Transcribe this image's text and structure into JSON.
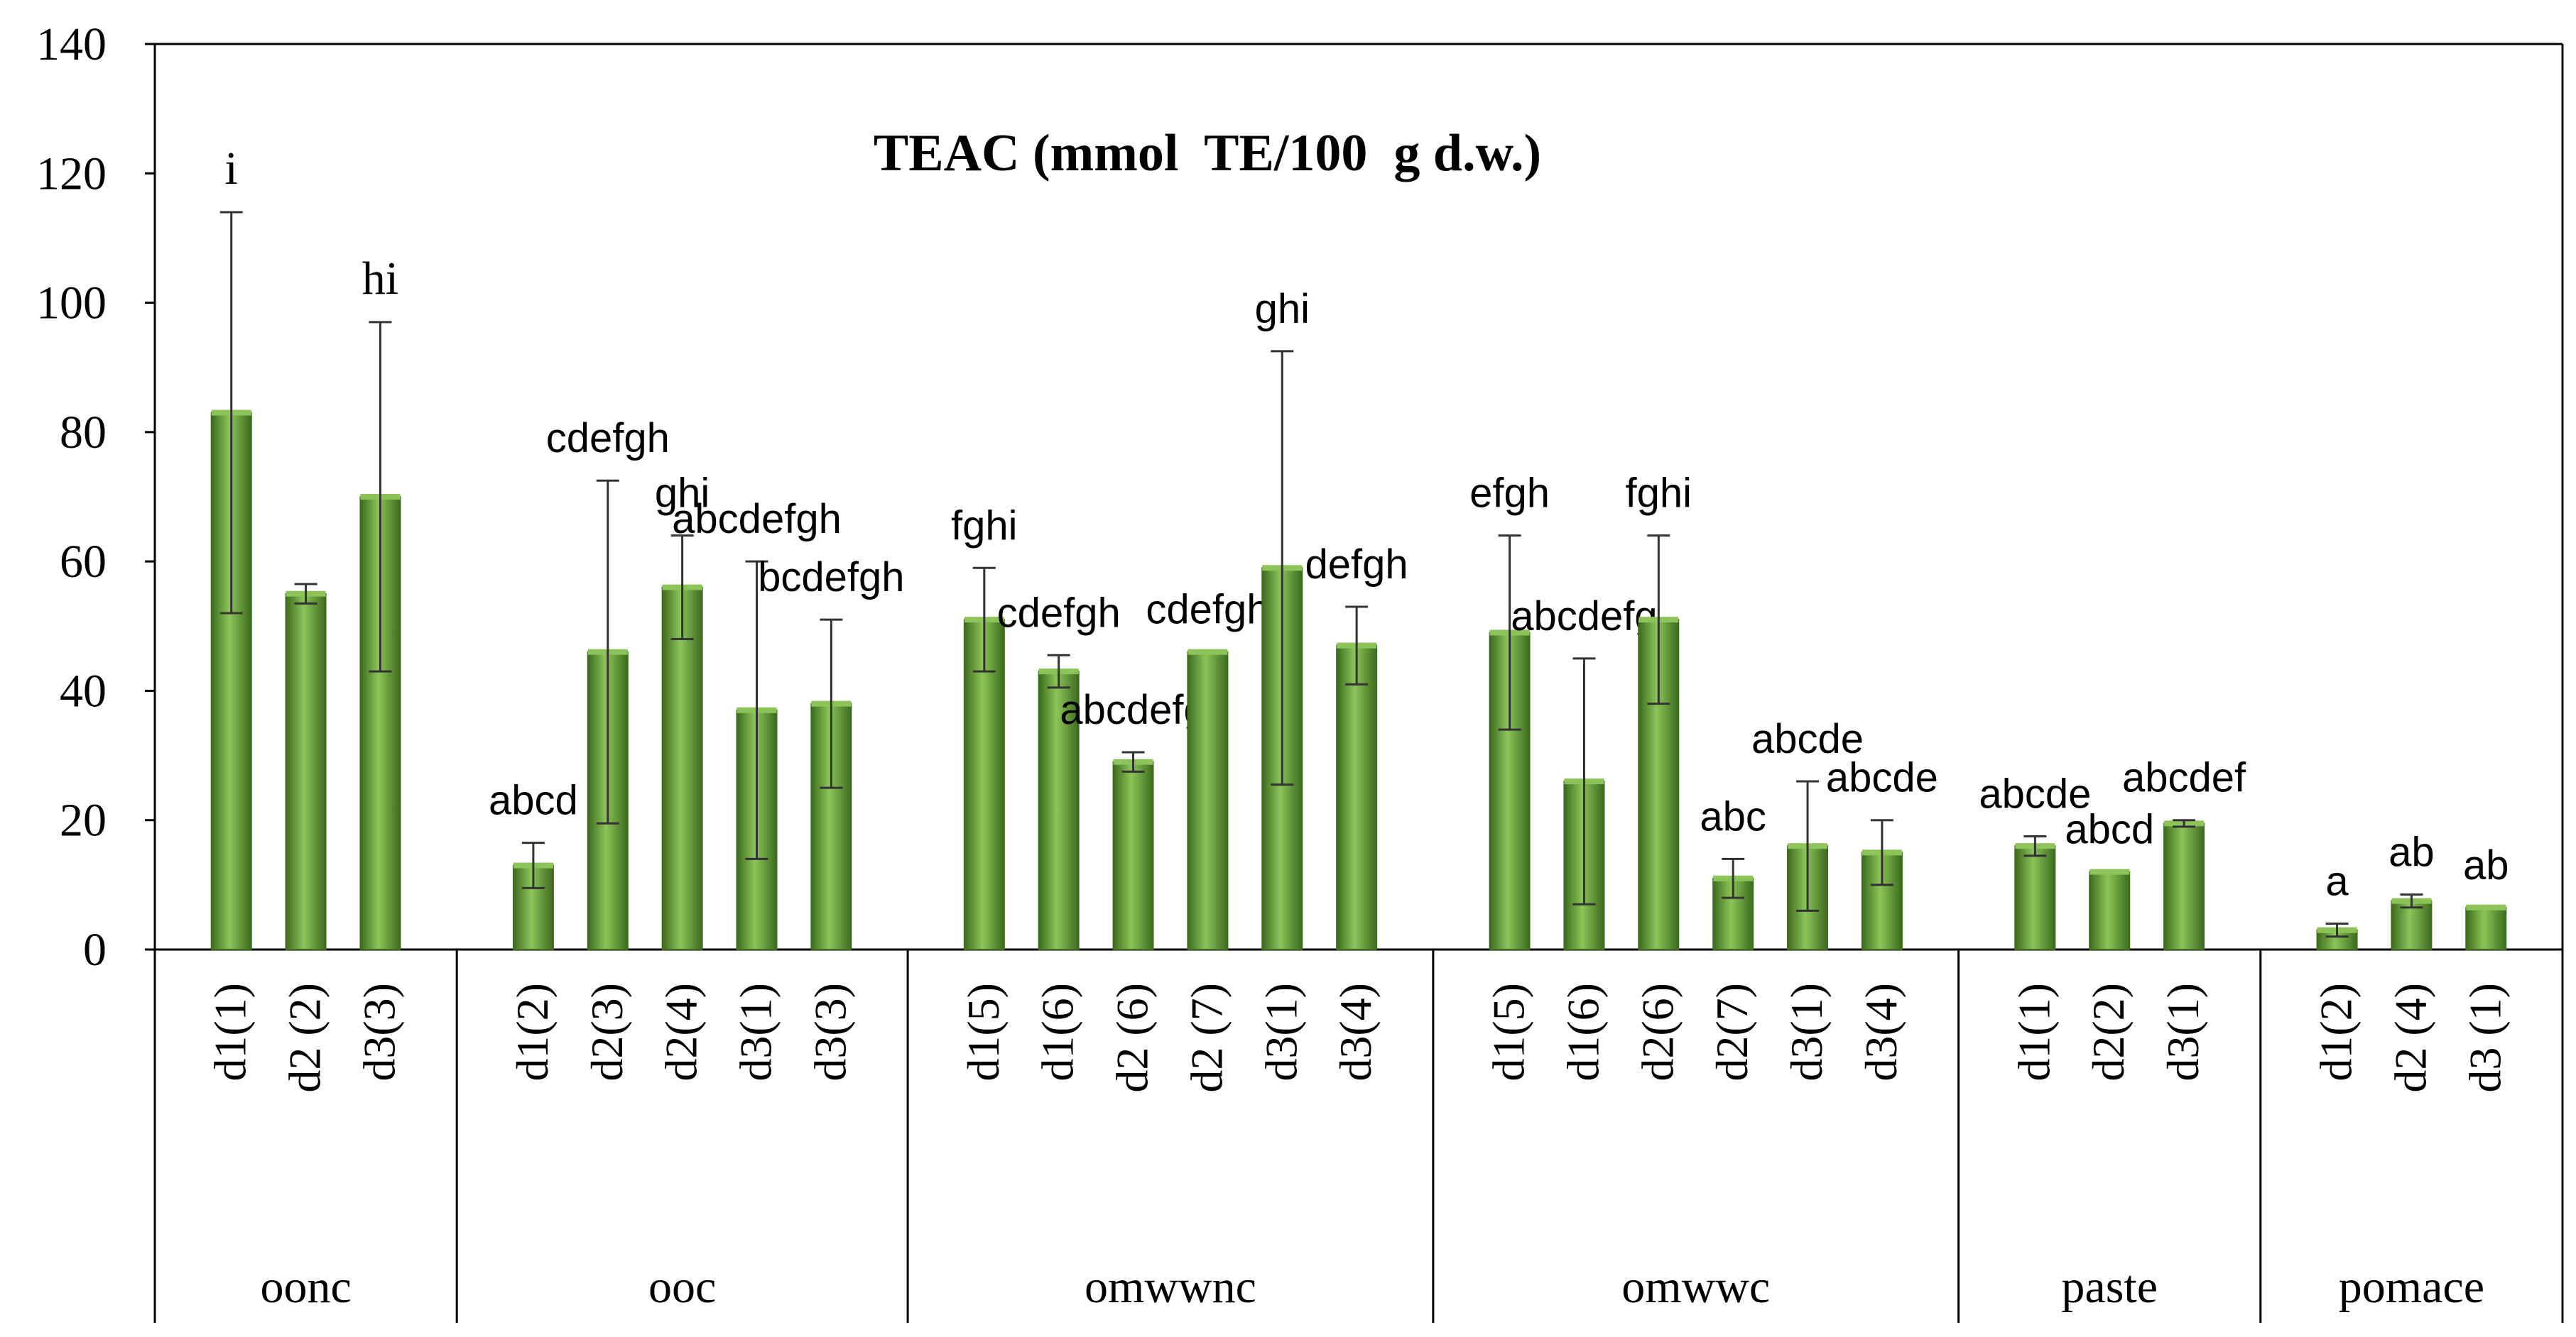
{
  "chart_data": {
    "type": "bar",
    "title": "TEAC (mmol  TE/100  g d.w.)",
    "xlabel": "",
    "ylabel": "",
    "ylim": [
      0,
      140
    ],
    "yticks": [
      0,
      20,
      40,
      60,
      80,
      100,
      120,
      140
    ],
    "grid": false,
    "legend": "none",
    "colors": {
      "bar": "#5a9a2e",
      "bar_light": "#8cc45a",
      "bar_dark": "#3d6b1e",
      "axis": "#000000",
      "text": "#000000"
    },
    "groups": [
      {
        "name": "oonc",
        "bars": [
          {
            "label": "d1(1)",
            "value": 83,
            "err": 31,
            "letter": "i"
          },
          {
            "label": "d2 (2)",
            "value": 55,
            "err": 1.5,
            "letter": ""
          },
          {
            "label": "d3(3)",
            "value": 70,
            "err": 27,
            "letter": "hi"
          }
        ]
      },
      {
        "name": "ooc",
        "bars": [
          {
            "label": "d1(2)",
            "value": 13,
            "err": 3.5,
            "letter": "abcd"
          },
          {
            "label": "d2(3)",
            "value": 46,
            "err": 26.5,
            "letter": "cdefgh"
          },
          {
            "label": "d2(4)",
            "value": 56,
            "err": 8,
            "letter": "ghi"
          },
          {
            "label": "d3(1)",
            "value": 37,
            "err": 23,
            "letter": "abcdefgh"
          },
          {
            "label": "d3(3)",
            "value": 38,
            "err": 13,
            "letter": "bcdefgh"
          }
        ]
      },
      {
        "name": "omwwnc",
        "bars": [
          {
            "label": "d1(5)",
            "value": 51,
            "err": 8,
            "letter": "fghi"
          },
          {
            "label": "d1(6)",
            "value": 43,
            "err": 2.5,
            "letter": "cdefgh"
          },
          {
            "label": "d2 (6)",
            "value": 29,
            "err": 1.5,
            "letter": "abcdefg"
          },
          {
            "label": "d2 (7)",
            "value": 46,
            "err": 0,
            "letter": "cdefgh"
          },
          {
            "label": "d3(1)",
            "value": 59,
            "err": 33.5,
            "letter": "ghi"
          },
          {
            "label": "d3(4)",
            "value": 47,
            "err": 6,
            "letter": "defgh"
          }
        ]
      },
      {
        "name": "omwwc",
        "bars": [
          {
            "label": "d1(5)",
            "value": 49,
            "err": 15,
            "letter": "efgh"
          },
          {
            "label": "d1(6)",
            "value": 26,
            "err": 19,
            "letter": "abcdefg"
          },
          {
            "label": "d2(6)",
            "value": 51,
            "err": 13,
            "letter": "fghi"
          },
          {
            "label": "d2(7)",
            "value": 11,
            "err": 3,
            "letter": "abc"
          },
          {
            "label": "d3(1)",
            "value": 16,
            "err": 10,
            "letter": "abcde"
          },
          {
            "label": "d3(4)",
            "value": 15,
            "err": 5,
            "letter": "abcde"
          }
        ]
      },
      {
        "name": "paste",
        "bars": [
          {
            "label": "d1(1)",
            "value": 16,
            "err": 1.5,
            "letter": "abcde"
          },
          {
            "label": "d2(2)",
            "value": 12,
            "err": 0,
            "letter": "abcd"
          },
          {
            "label": "d3(1)",
            "value": 19.5,
            "err": 0.5,
            "letter": "abcdef"
          }
        ]
      },
      {
        "name": "pomace",
        "bars": [
          {
            "label": "d1(2)",
            "value": 3,
            "err": 1,
            "letter": "a"
          },
          {
            "label": "d2 (4)",
            "value": 7.5,
            "err": 1,
            "letter": "ab"
          },
          {
            "label": "d3 (1)",
            "value": 6.5,
            "err": 0,
            "letter": "ab"
          }
        ]
      }
    ]
  }
}
